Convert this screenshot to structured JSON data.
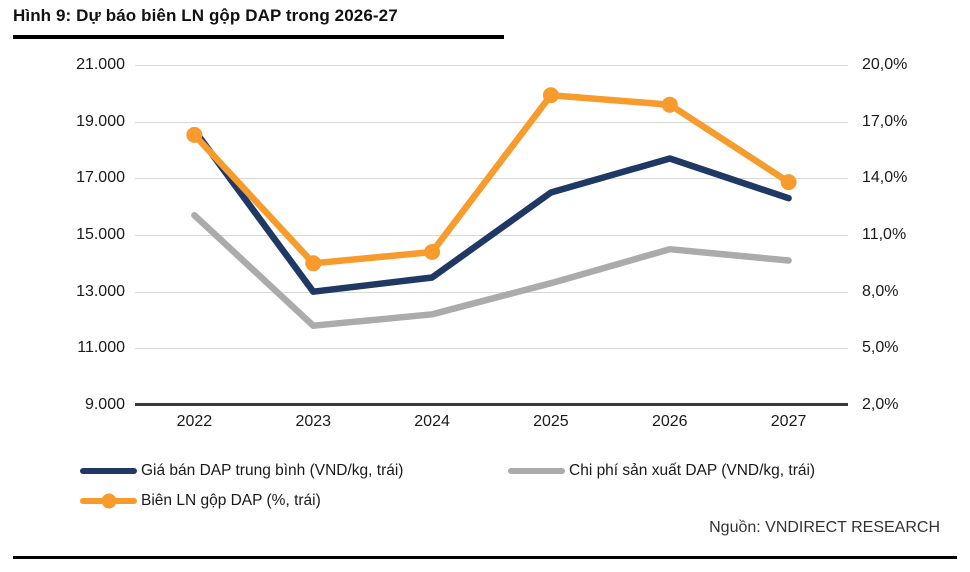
{
  "header": {
    "title": "Hình 9: Dự báo biên LN gộp DAP trong 2026-27"
  },
  "source": {
    "label": "Nguồn: VNDIRECT RESEARCH"
  },
  "colors": {
    "price_line": "#1f3864",
    "cost_line": "#ababab",
    "margin_line": "#f79b2c",
    "gridline": "#d9d9d9",
    "axis_line": "#3a3a3a",
    "rule": "#000000"
  },
  "chart_data": {
    "type": "line",
    "title": "Hình 9: Dự báo biên LN gộp DAP trong 2026-27",
    "categories": [
      "2022",
      "2023",
      "2024",
      "2025",
      "2026",
      "2027"
    ],
    "series": [
      {
        "name": "Giá bán DAP trung bình (VND/kg, trái)",
        "axis": "left",
        "color": "#1f3864",
        "marker": false,
        "values": [
          18700,
          13000,
          13500,
          16500,
          17700,
          16300
        ]
      },
      {
        "name": "Chi phí sản xuất DAP (VND/kg, trái)",
        "axis": "left",
        "color": "#ababab",
        "marker": false,
        "values": [
          15700,
          11800,
          12200,
          13300,
          14500,
          14100
        ]
      },
      {
        "name": "Biên LN gộp DAP (%, trái)",
        "axis": "right",
        "color": "#f79b2c",
        "marker": true,
        "values": [
          16.3,
          9.5,
          10.1,
          18.4,
          17.9,
          13.8
        ]
      }
    ],
    "left_axis": {
      "min": 9000,
      "max": 21000,
      "tick_labels": [
        "21.000",
        "19.000",
        "17.000",
        "15.000",
        "13.000",
        "11.000",
        "9.000"
      ]
    },
    "right_axis": {
      "min": 2.0,
      "max": 20.0,
      "tick_labels": [
        "20,0%",
        "17,0%",
        "14,0%",
        "11,0%",
        "8,0%",
        "5,0%",
        "2,0%"
      ]
    },
    "grid": true,
    "legend_position": "bottom",
    "draw_order": [
      1,
      0,
      2
    ]
  }
}
